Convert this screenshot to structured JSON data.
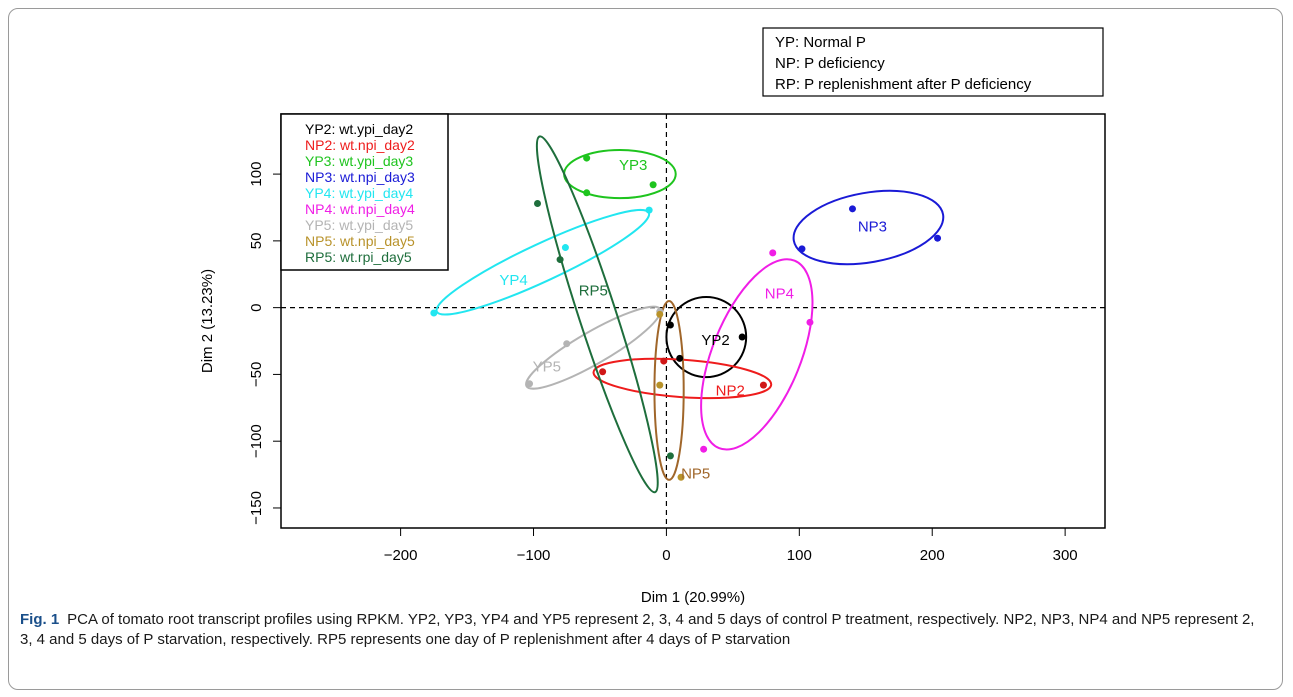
{
  "chart_data": {
    "type": "scatter",
    "xlabel": "Dim 1 (20.99%)",
    "ylabel": "Dim 2 (13.23%)",
    "xlim": [
      -290,
      330
    ],
    "ylim": [
      -165,
      145
    ],
    "xticks": [
      -200,
      -100,
      0,
      100,
      200,
      300
    ],
    "yticks": [
      -150,
      -100,
      -50,
      0,
      50,
      100
    ],
    "legend_position": "top-left",
    "legend": [
      {
        "label": "YP2: wt.ypi_day2",
        "color": "#000000"
      },
      {
        "label": "NP2: wt.npi_day2",
        "color": "#ee1c1c"
      },
      {
        "label": "YP3: wt.ypi_day3",
        "color": "#1ec41e"
      },
      {
        "label": "NP3: wt.npi_day3",
        "color": "#1a1ad6"
      },
      {
        "label": "YP4: wt.ypi_day4",
        "color": "#22e6f0"
      },
      {
        "label": "NP4: wt.npi_day4",
        "color": "#f01ee6"
      },
      {
        "label": "YP5: wt.ypi_day5",
        "color": "#b4b4b4"
      },
      {
        "label": "NP5: wt.npi_day5",
        "color": "#b8922a"
      },
      {
        "label": "RP5: wt.rpi_day5",
        "color": "#1e6e3c"
      }
    ],
    "key_box": [
      "YP: Normal P",
      "NP: P deficiency",
      "RP: P replenishment after P deficiency"
    ],
    "series": [
      {
        "name": "YP2",
        "color": "#000000",
        "ellipse_color": "#000000",
        "points": [
          [
            3,
            -13
          ],
          [
            10,
            -38
          ],
          [
            57,
            -22
          ]
        ],
        "ellipse": {
          "cx": 30,
          "cy": -22,
          "rx": 30,
          "ry": 30,
          "angle": 0
        },
        "label_at": [
          37,
          -25
        ]
      },
      {
        "name": "NP2",
        "color": "#d01818",
        "ellipse_color": "#ee1c1c",
        "points": [
          [
            -48,
            -48
          ],
          [
            -2,
            -40
          ],
          [
            73,
            -58
          ]
        ],
        "ellipse": {
          "cx": 12,
          "cy": -53,
          "rx": 67,
          "ry": 14,
          "angle": -4
        },
        "label_at": [
          48,
          -63
        ]
      },
      {
        "name": "YP3",
        "color": "#1ec41e",
        "ellipse_color": "#1ec41e",
        "points": [
          [
            -60,
            112
          ],
          [
            -60,
            86
          ],
          [
            -10,
            92
          ]
        ],
        "ellipse": {
          "cx": -35,
          "cy": 100,
          "rx": 42,
          "ry": 18,
          "angle": 0
        },
        "label_at": [
          -25,
          106
        ]
      },
      {
        "name": "NP3",
        "color": "#1a1ad6",
        "ellipse_color": "#1a1ad6",
        "points": [
          [
            140,
            74
          ],
          [
            102,
            44
          ],
          [
            204,
            52
          ]
        ],
        "ellipse": {
          "cx": 152,
          "cy": 60,
          "rx": 57,
          "ry": 26,
          "angle": 10
        },
        "label_at": [
          155,
          60
        ]
      },
      {
        "name": "NP4",
        "color": "#f01ee6",
        "ellipse_color": "#f01ee6",
        "points": [
          [
            80,
            41
          ],
          [
            108,
            -11
          ],
          [
            28,
            -106
          ]
        ],
        "ellipse": {
          "cx": 68,
          "cy": -35,
          "rx": 76,
          "ry": 33,
          "angle": 68
        },
        "label_at": [
          85,
          10
        ]
      },
      {
        "name": "YP4",
        "color": "#22e6f0",
        "ellipse_color": "#22e6f0",
        "points": [
          [
            -175,
            -4
          ],
          [
            -76,
            45
          ],
          [
            -13,
            73
          ]
        ],
        "ellipse": {
          "cx": -93,
          "cy": 34,
          "rx": 88,
          "ry": 14,
          "angle": 25
        },
        "label_at": [
          -115,
          20
        ]
      },
      {
        "name": "YP5",
        "color": "#b4b4b4",
        "ellipse_color": "#b4b4b4",
        "points": [
          [
            -103,
            -57
          ],
          [
            -75,
            -27
          ],
          [
            -5,
            -3
          ]
        ],
        "ellipse": {
          "cx": -55,
          "cy": -30,
          "rx": 58,
          "ry": 12,
          "angle": 30
        },
        "label_at": [
          -90,
          -45
        ]
      },
      {
        "name": "NP5",
        "color": "#b8922a",
        "ellipse_color": "#a0662a",
        "points": [
          [
            -5,
            -5
          ],
          [
            -5,
            -58
          ],
          [
            11,
            -127
          ]
        ],
        "ellipse": {
          "cx": 2,
          "cy": -62,
          "rx": 11,
          "ry": 67,
          "angle": 0
        },
        "label_at": [
          22,
          -125
        ]
      },
      {
        "name": "RP5",
        "color": "#1e6e3c",
        "ellipse_color": "#1e6e3c",
        "points": [
          [
            -97,
            78
          ],
          [
            -80,
            36
          ],
          [
            3,
            -111
          ]
        ],
        "ellipse": {
          "cx": -52,
          "cy": -5,
          "rx": 14,
          "ry": 140,
          "angle": 18
        },
        "label_at": [
          -55,
          12
        ]
      }
    ]
  },
  "caption": {
    "label": "Fig. 1",
    "text": "PCA of tomato root transcript profiles using RPKM. YP2, YP3, YP4 and YP5 represent 2, 3, 4 and 5 days of control P treatment, respectively. NP2, NP3, NP4 and NP5 represent 2, 3, 4 and 5 days of P starvation, respectively. RP5 represents one day of P replenishment after 4 days of P starvation"
  }
}
